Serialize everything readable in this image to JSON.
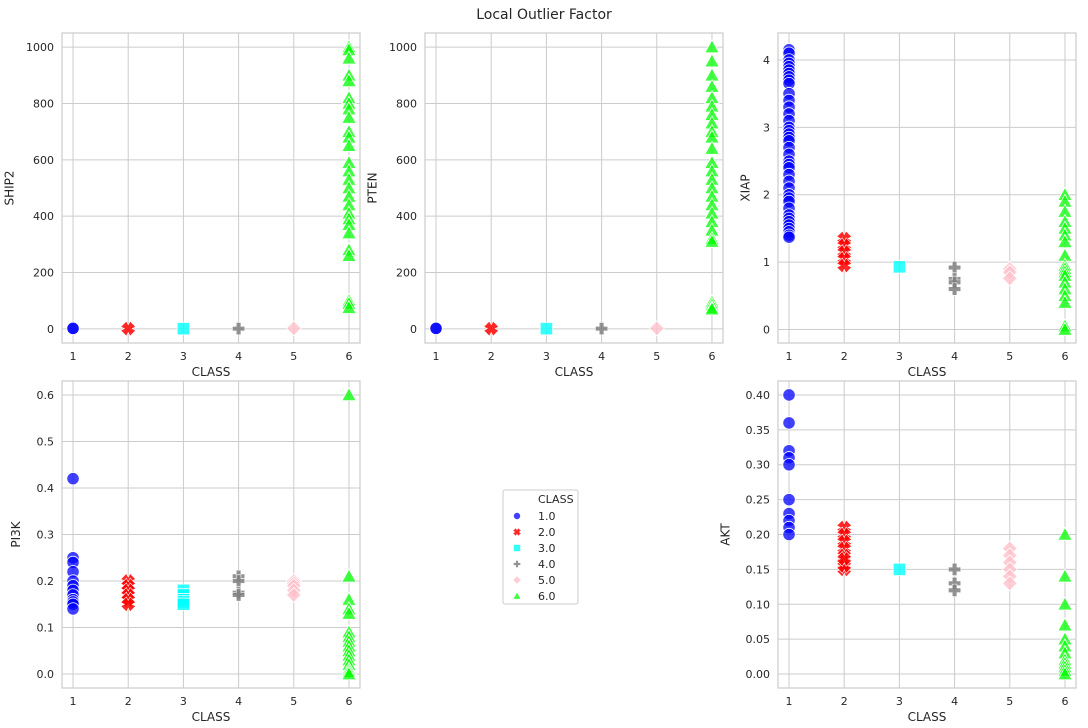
{
  "figure_title": "Local Outlier Factor",
  "legend": {
    "title": "CLASS",
    "entries": [
      {
        "label": "1.0",
        "color": "#0000ff",
        "marker": "circle"
      },
      {
        "label": "2.0",
        "color": "#ff0000",
        "marker": "x"
      },
      {
        "label": "3.0",
        "color": "#00ffff",
        "marker": "square"
      },
      {
        "label": "4.0",
        "color": "#808080",
        "marker": "plus"
      },
      {
        "label": "5.0",
        "color": "#ffc0cb",
        "marker": "diamond"
      },
      {
        "label": "6.0",
        "color": "#00ff00",
        "marker": "triangle"
      }
    ]
  },
  "chart_data": [
    {
      "type": "scatter",
      "xlabel": "CLASS",
      "ylabel": "SHIP2",
      "ylim": [
        -50,
        1050
      ],
      "xlim": [
        0.8,
        6.2
      ],
      "yticks": [
        0,
        200,
        400,
        600,
        800,
        1000
      ],
      "yticklabels": [
        "0",
        "200",
        "400",
        "600",
        "800",
        "1000"
      ],
      "xticks": [
        1,
        2,
        3,
        4,
        5,
        6
      ],
      "series": [
        {
          "name": "1.0",
          "x": [
            1,
            1
          ],
          "y": [
            1,
            2
          ]
        },
        {
          "name": "2.0",
          "x": [
            2
          ],
          "y": [
            1
          ]
        },
        {
          "name": "3.0",
          "x": [
            3
          ],
          "y": [
            1
          ]
        },
        {
          "name": "4.0",
          "x": [
            4
          ],
          "y": [
            1
          ]
        },
        {
          "name": "5.0",
          "x": [
            5
          ],
          "y": [
            2
          ]
        },
        {
          "name": "6.0",
          "x": [
            6,
            6,
            6,
            6,
            6,
            6,
            6,
            6,
            6,
            6,
            6,
            6,
            6,
            6,
            6,
            6,
            6,
            6,
            6,
            6,
            6,
            6,
            6,
            6,
            6,
            6,
            6
          ],
          "y": [
            1000,
            990,
            960,
            900,
            880,
            820,
            800,
            780,
            750,
            700,
            680,
            650,
            590,
            560,
            530,
            500,
            470,
            440,
            410,
            390,
            370,
            340,
            280,
            260,
            100,
            90,
            75
          ]
        }
      ]
    },
    {
      "type": "scatter",
      "xlabel": "CLASS",
      "ylabel": "PTEN",
      "ylim": [
        -50,
        1050
      ],
      "xlim": [
        0.8,
        6.2
      ],
      "yticks": [
        0,
        200,
        400,
        600,
        800,
        1000
      ],
      "yticklabels": [
        "0",
        "200",
        "400",
        "600",
        "800",
        "1000"
      ],
      "xticks": [
        1,
        2,
        3,
        4,
        5,
        6
      ],
      "series": [
        {
          "name": "1.0",
          "x": [
            1,
            1
          ],
          "y": [
            1,
            2
          ]
        },
        {
          "name": "2.0",
          "x": [
            2
          ],
          "y": [
            1
          ]
        },
        {
          "name": "3.0",
          "x": [
            3
          ],
          "y": [
            1
          ]
        },
        {
          "name": "4.0",
          "x": [
            4
          ],
          "y": [
            1
          ]
        },
        {
          "name": "5.0",
          "x": [
            5
          ],
          "y": [
            2
          ]
        },
        {
          "name": "6.0",
          "x": [
            6,
            6,
            6,
            6,
            6,
            6,
            6,
            6,
            6,
            6,
            6,
            6,
            6,
            6,
            6,
            6,
            6,
            6,
            6,
            6,
            6,
            6,
            6,
            6,
            6,
            6
          ],
          "y": [
            1000,
            950,
            900,
            860,
            820,
            790,
            760,
            730,
            700,
            680,
            640,
            590,
            560,
            530,
            500,
            470,
            440,
            410,
            380,
            350,
            320,
            310,
            95,
            85,
            75,
            70
          ]
        }
      ]
    },
    {
      "type": "scatter",
      "xlabel": "CLASS",
      "ylabel": "XIAP",
      "ylim": [
        -0.2,
        4.4
      ],
      "xlim": [
        0.8,
        6.2
      ],
      "yticks": [
        0,
        1,
        2,
        3,
        4
      ],
      "yticklabels": [
        "0",
        "1",
        "2",
        "3",
        "4"
      ],
      "xticks": [
        1,
        2,
        3,
        4,
        5,
        6
      ],
      "series": [
        {
          "name": "1.0",
          "x": [
            1,
            1,
            1,
            1,
            1,
            1,
            1,
            1,
            1,
            1,
            1,
            1,
            1,
            1,
            1,
            1,
            1,
            1,
            1,
            1,
            1,
            1,
            1,
            1,
            1,
            1,
            1,
            1,
            1,
            1,
            1,
            1,
            1,
            1,
            1,
            1,
            1,
            1,
            1,
            1
          ],
          "y": [
            4.15,
            4.1,
            4.0,
            3.95,
            3.9,
            3.85,
            3.8,
            3.75,
            3.7,
            3.65,
            3.5,
            3.4,
            3.3,
            3.2,
            3.1,
            3.0,
            2.95,
            2.9,
            2.85,
            2.8,
            2.7,
            2.6,
            2.5,
            2.45,
            2.4,
            2.3,
            2.2,
            2.1,
            2.0,
            1.95,
            1.9,
            1.8,
            1.7,
            1.65,
            1.6,
            1.55,
            1.5,
            1.45,
            1.4,
            1.37
          ]
        },
        {
          "name": "2.0",
          "x": [
            2,
            2,
            2,
            2,
            2
          ],
          "y": [
            1.35,
            1.25,
            1.15,
            1.05,
            0.95
          ]
        },
        {
          "name": "3.0",
          "x": [
            3
          ],
          "y": [
            0.93
          ]
        },
        {
          "name": "4.0",
          "x": [
            4,
            4,
            4,
            4
          ],
          "y": [
            0.92,
            0.75,
            0.7,
            0.6
          ]
        },
        {
          "name": "5.0",
          "x": [
            5,
            5,
            5
          ],
          "y": [
            0.9,
            0.85,
            0.76
          ]
        },
        {
          "name": "6.0",
          "x": [
            6,
            6,
            6,
            6,
            6,
            6,
            6,
            6,
            6,
            6,
            6,
            6,
            6,
            6,
            6,
            6,
            6,
            6
          ],
          "y": [
            2.0,
            1.9,
            1.75,
            1.6,
            1.5,
            1.4,
            1.3,
            1.1,
            0.95,
            0.9,
            0.85,
            0.8,
            0.7,
            0.6,
            0.5,
            0.4,
            0.05,
            0.0
          ]
        }
      ]
    },
    {
      "type": "scatter",
      "xlabel": "CLASS",
      "ylabel": "PI3K",
      "ylim": [
        -0.03,
        0.63
      ],
      "xlim": [
        0.8,
        6.2
      ],
      "yticks": [
        0,
        0.1,
        0.2,
        0.3,
        0.4,
        0.5,
        0.6
      ],
      "yticklabels": [
        "0.0",
        "0.1",
        "0.2",
        "0.3",
        "0.4",
        "0.5",
        "0.6"
      ],
      "xticks": [
        1,
        2,
        3,
        4,
        5,
        6
      ],
      "series": [
        {
          "name": "1.0",
          "x": [
            1,
            1,
            1,
            1,
            1,
            1,
            1,
            1,
            1,
            1,
            1,
            1
          ],
          "y": [
            0.42,
            0.25,
            0.24,
            0.22,
            0.2,
            0.19,
            0.18,
            0.17,
            0.16,
            0.155,
            0.15,
            0.14
          ]
        },
        {
          "name": "2.0",
          "x": [
            2,
            2,
            2,
            2,
            2,
            2
          ],
          "y": [
            0.2,
            0.19,
            0.18,
            0.17,
            0.16,
            0.15
          ]
        },
        {
          "name": "3.0",
          "x": [
            3,
            3,
            3,
            3,
            3
          ],
          "y": [
            0.18,
            0.17,
            0.16,
            0.155,
            0.15
          ]
        },
        {
          "name": "4.0",
          "x": [
            4,
            4,
            4,
            4
          ],
          "y": [
            0.21,
            0.2,
            0.175,
            0.17
          ]
        },
        {
          "name": "5.0",
          "x": [
            5,
            5,
            5,
            5,
            5
          ],
          "y": [
            0.2,
            0.195,
            0.19,
            0.18,
            0.17
          ]
        },
        {
          "name": "6.0",
          "x": [
            6,
            6,
            6,
            6,
            6,
            6,
            6,
            6,
            6,
            6,
            6,
            6,
            6,
            6,
            6,
            6
          ],
          "y": [
            0.6,
            0.21,
            0.16,
            0.14,
            0.13,
            0.09,
            0.08,
            0.07,
            0.06,
            0.05,
            0.04,
            0.03,
            0.02,
            0.01,
            0.005,
            0.0
          ]
        }
      ]
    },
    {
      "type": "scatter",
      "xlabel": "CLASS",
      "ylabel": "AKT",
      "ylim": [
        -0.02,
        0.42
      ],
      "xlim": [
        0.8,
        6.2
      ],
      "yticks": [
        0,
        0.05,
        0.1,
        0.15,
        0.2,
        0.25,
        0.3,
        0.35,
        0.4
      ],
      "yticklabels": [
        "0.00",
        "0.05",
        "0.10",
        "0.15",
        "0.20",
        "0.25",
        "0.30",
        "0.35",
        "0.40"
      ],
      "xticks": [
        1,
        2,
        3,
        4,
        5,
        6
      ],
      "series": [
        {
          "name": "1.0",
          "x": [
            1,
            1,
            1,
            1,
            1,
            1,
            1,
            1,
            1,
            1
          ],
          "y": [
            0.4,
            0.36,
            0.32,
            0.31,
            0.3,
            0.25,
            0.23,
            0.22,
            0.21,
            0.2
          ]
        },
        {
          "name": "2.0",
          "x": [
            2,
            2,
            2,
            2,
            2,
            2,
            2,
            2,
            2
          ],
          "y": [
            0.21,
            0.2,
            0.19,
            0.18,
            0.17,
            0.16,
            0.15,
            0.155,
            0.165
          ]
        },
        {
          "name": "3.0",
          "x": [
            3
          ],
          "y": [
            0.15
          ]
        },
        {
          "name": "4.0",
          "x": [
            4,
            4,
            4
          ],
          "y": [
            0.15,
            0.13,
            0.12
          ]
        },
        {
          "name": "5.0",
          "x": [
            5,
            5,
            5,
            5,
            5,
            5
          ],
          "y": [
            0.18,
            0.17,
            0.16,
            0.15,
            0.14,
            0.13
          ]
        },
        {
          "name": "6.0",
          "x": [
            6,
            6,
            6,
            6,
            6,
            6,
            6,
            6,
            6,
            6,
            6,
            6
          ],
          "y": [
            0.2,
            0.14,
            0.1,
            0.07,
            0.05,
            0.04,
            0.03,
            0.02,
            0.015,
            0.01,
            0.005,
            0.0
          ]
        }
      ]
    }
  ]
}
